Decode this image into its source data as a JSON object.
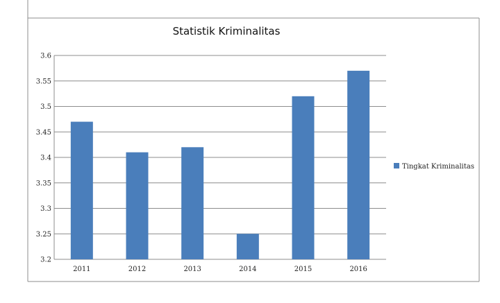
{
  "chart_data": {
    "type": "bar",
    "title": "Statistik Kriminalitas",
    "categories": [
      "2011",
      "2012",
      "2013",
      "2014",
      "2015",
      "2016"
    ],
    "series": [
      {
        "name": "Tingkat Kriminalitas",
        "values": [
          3.47,
          3.41,
          3.42,
          3.25,
          3.52,
          3.57
        ]
      }
    ],
    "y_ticks": [
      "3.2",
      "3.25",
      "3.3",
      "3.35",
      "3.4",
      "3.45",
      "3.5",
      "3.55",
      "3.6"
    ],
    "ylim": [
      3.2,
      3.6
    ],
    "xlabel": "",
    "ylabel": "",
    "grid": true,
    "legend_position": "right",
    "bar_color": "#4a7ebb",
    "grid_color": "#8c8c8c",
    "frame_color": "#8c8c8c"
  }
}
